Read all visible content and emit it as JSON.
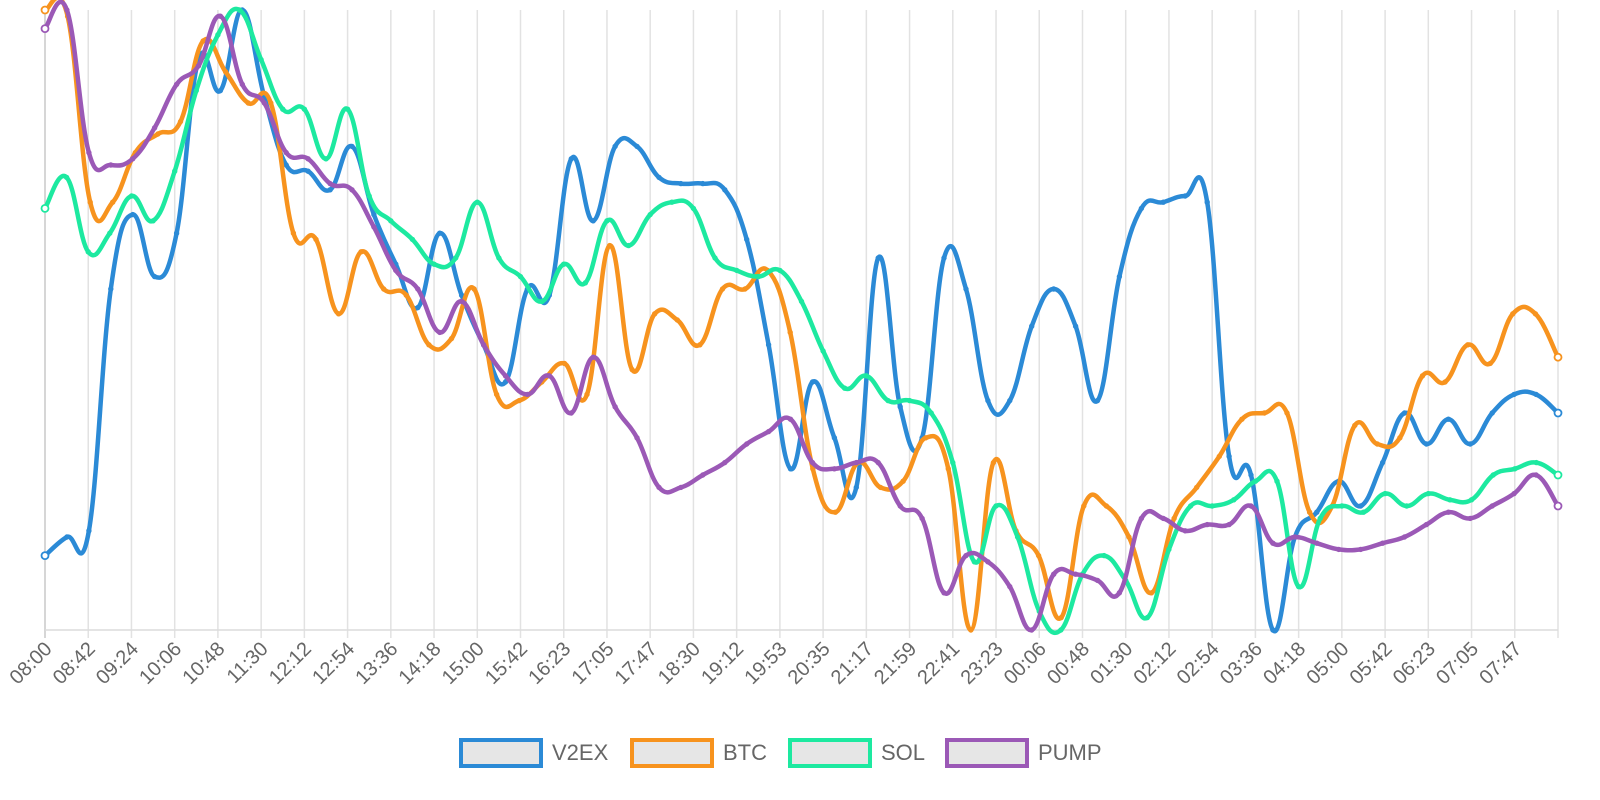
{
  "chart_data": {
    "type": "line",
    "title": "",
    "xlabel": "",
    "ylabel": "",
    "ylim": [
      0,
      100
    ],
    "grid": true,
    "legend_position": "bottom",
    "x_ticks": [
      "08:00",
      "08:42",
      "09:24",
      "10:06",
      "10:48",
      "11:30",
      "12:12",
      "12:54",
      "13:36",
      "14:18",
      "15:00",
      "15:42",
      "16:23",
      "17:05",
      "17:47",
      "18:30",
      "19:12",
      "19:53",
      "20:35",
      "21:17",
      "21:59",
      "22:41",
      "23:23",
      "00:06",
      "00:48",
      "01:30",
      "02:12",
      "02:54",
      "03:36",
      "04:18",
      "05:00",
      "05:42",
      "06:23",
      "07:05",
      "07:47"
    ],
    "series": [
      {
        "name": "V2EX",
        "color": "#2b8ad6",
        "values": [
          12,
          15,
          16,
          55,
          67,
          57,
          64,
          92,
          87,
          100,
          86,
          75,
          74,
          71,
          78,
          67,
          59,
          52,
          64,
          54,
          46,
          40,
          55,
          54,
          76,
          66,
          78,
          78,
          73,
          72,
          72,
          71,
          63,
          46,
          26,
          40,
          31,
          23,
          60,
          36,
          31,
          60,
          55,
          37,
          37,
          49,
          55,
          49,
          37,
          57,
          68,
          69,
          70,
          69,
          28,
          25,
          0,
          15,
          19,
          24,
          20,
          27,
          35,
          30,
          34,
          30,
          35,
          38,
          38,
          35
        ]
      },
      {
        "name": "BTC",
        "color": "#f7931e",
        "values": [
          100,
          99,
          69,
          69,
          77,
          80,
          82,
          95,
          90,
          85,
          85,
          64,
          63,
          51,
          61,
          55,
          54,
          46,
          47,
          55,
          38,
          37,
          40,
          43,
          38,
          62,
          42,
          51,
          50,
          46,
          55,
          55,
          58,
          48,
          26,
          19,
          27,
          23,
          24,
          31,
          26,
          0,
          27,
          16,
          12,
          2,
          20,
          20,
          15,
          6,
          18,
          23,
          28,
          34,
          35,
          35,
          19,
          20,
          33,
          30,
          31,
          41,
          40,
          46,
          43,
          51,
          51,
          44
        ]
      },
      {
        "name": "SOL",
        "color": "#1de9a0",
        "values": [
          68,
          73,
          61,
          64,
          70,
          66,
          74,
          87,
          96,
          100,
          92,
          84,
          84,
          76,
          84,
          70,
          66,
          63,
          59,
          60,
          69,
          60,
          57,
          53,
          59,
          56,
          66,
          62,
          67,
          69,
          68,
          60,
          58,
          57,
          58,
          53,
          45,
          39,
          41,
          37,
          37,
          35,
          27,
          11,
          20,
          15,
          3,
          0,
          9,
          12,
          8,
          2,
          13,
          20,
          20,
          21,
          24,
          24,
          7,
          18,
          20,
          19,
          22,
          20,
          22,
          21,
          21,
          25,
          26,
          27,
          25
        ]
      },
      {
        "name": "PUMP",
        "color": "#9b59b6",
        "values": [
          97,
          100,
          77,
          75,
          76,
          81,
          88,
          91,
          99,
          88,
          85,
          77,
          76,
          72,
          71,
          65,
          58,
          55,
          48,
          53,
          46,
          41,
          38,
          41,
          35,
          44,
          36,
          31,
          23,
          23,
          25,
          27,
          30,
          32,
          34,
          27,
          26,
          27,
          27,
          20,
          18,
          6,
          12,
          11,
          7,
          0,
          9,
          9,
          8,
          6,
          18,
          18,
          16,
          17,
          17,
          20,
          14,
          15,
          14,
          13,
          13,
          14,
          15,
          17,
          19,
          18,
          20,
          22,
          25,
          20
        ]
      }
    ]
  }
}
